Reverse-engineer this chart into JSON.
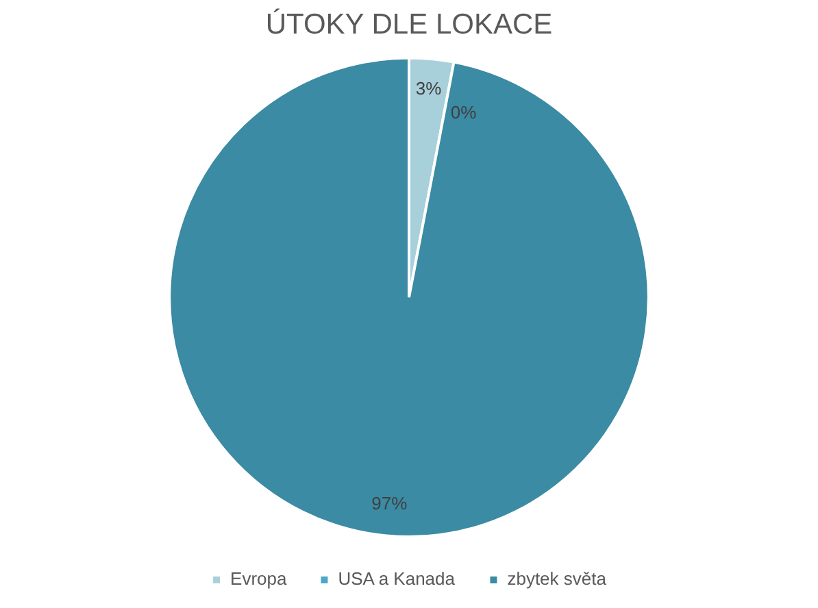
{
  "chart_data": {
    "type": "pie",
    "title": "ÚTOKY DLE LOKACE",
    "categories": [
      "Evropa",
      "USA a Kanada",
      "zbytek světa"
    ],
    "values": [
      3,
      0,
      97
    ],
    "colors": [
      "#a8d0da",
      "#4ba8c6",
      "#3a8ba3"
    ],
    "value_labels": [
      "3%",
      "0%",
      "97%"
    ],
    "legend": "bottom"
  }
}
